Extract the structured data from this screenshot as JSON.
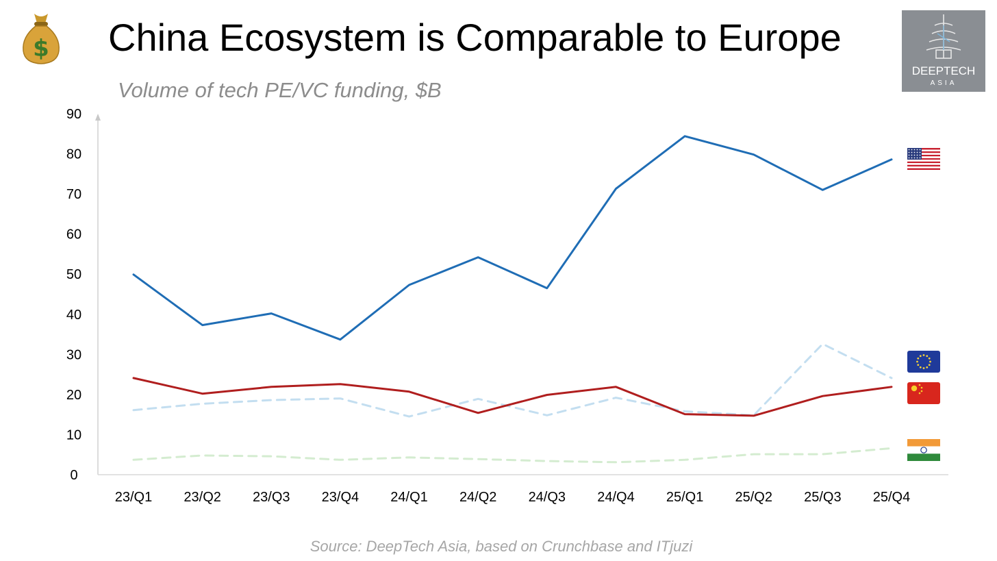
{
  "header": {
    "title": "China Ecosystem is Comparable to Europe",
    "subtitle": "Volume of tech PE/VC funding, $B",
    "icon": "money-bag-icon"
  },
  "logo": {
    "name": "DEEPTECH",
    "sub": "ASIA"
  },
  "footer": {
    "source": "Source: DeepTech Asia, based on Crunchbase and ITjuzi"
  },
  "chart_data": {
    "type": "line",
    "title": "China Ecosystem is Comparable to Europe",
    "subtitle": "Volume of tech PE/VC funding, $B",
    "xlabel": "",
    "ylabel": "",
    "categories": [
      "23/Q1",
      "23/Q2",
      "23/Q3",
      "23/Q4",
      "24/Q1",
      "24/Q2",
      "24/Q3",
      "24/Q4",
      "25/Q1",
      "25/Q2",
      "25/Q3",
      "25/Q4"
    ],
    "ylim": [
      0,
      90
    ],
    "yticks": [
      0,
      10,
      20,
      30,
      40,
      50,
      60,
      70,
      80,
      90
    ],
    "grid": false,
    "legend": "flag icons at right end of each series",
    "series": [
      {
        "key": "us",
        "flag": "us-flag-icon",
        "color": "#1f6db5",
        "dashed": false,
        "values": [
          49.9,
          37.3,
          40.2,
          33.7,
          47.3,
          54.2,
          46.5,
          71.3,
          84.4,
          79.8,
          71.0,
          78.6
        ]
      },
      {
        "key": "eu",
        "flag": "eu-flag-icon",
        "color": "#c3def0",
        "dashed": true,
        "values": [
          16.1,
          17.7,
          18.6,
          19.0,
          14.5,
          18.9,
          14.8,
          19.2,
          15.8,
          14.8,
          32.6,
          24.1
        ]
      },
      {
        "key": "china",
        "flag": "china-flag-icon",
        "color": "#b01e1e",
        "dashed": false,
        "values": [
          24.1,
          20.2,
          21.9,
          22.6,
          20.7,
          15.4,
          19.9,
          21.9,
          15.1,
          14.7,
          19.6,
          21.9
        ]
      },
      {
        "key": "india",
        "flag": "india-flag-icon",
        "color": "#d4ecd0",
        "dashed": true,
        "values": [
          3.7,
          4.8,
          4.6,
          3.7,
          4.3,
          3.9,
          3.4,
          3.1,
          3.7,
          5.1,
          5.1,
          6.6
        ]
      }
    ]
  }
}
